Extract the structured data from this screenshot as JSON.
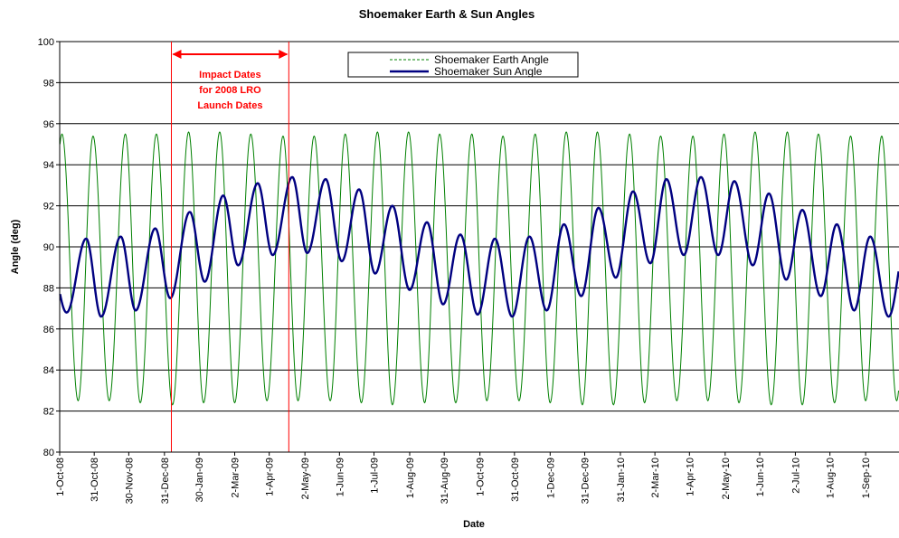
{
  "chart_data": {
    "type": "line",
    "title": "Shoemaker Earth & Sun Angles",
    "xlabel": "Date",
    "ylabel": "Angle (deg)",
    "ylim": [
      80,
      100
    ],
    "yticks": [
      80,
      82,
      84,
      86,
      88,
      90,
      92,
      94,
      96,
      98,
      100
    ],
    "xlim": [
      "2008-10-01",
      "2010-09-30"
    ],
    "x_tick_labels": [
      "1-Oct-08",
      "31-Oct-08",
      "30-Nov-08",
      "31-Dec-08",
      "30-Jan-09",
      "2-Mar-09",
      "1-Apr-09",
      "2-May-09",
      "1-Jun-09",
      "1-Jul-09",
      "1-Aug-09",
      "31-Aug-09",
      "1-Oct-09",
      "31-Oct-09",
      "1-Dec-09",
      "31-Dec-09",
      "31-Jan-10",
      "2-Mar-10",
      "1-Apr-10",
      "2-May-10",
      "1-Jun-10",
      "2-Jul-10",
      "1-Aug-10",
      "1-Sep-10"
    ],
    "x_tick_dates": [
      "2008-10-01",
      "2008-10-31",
      "2008-11-30",
      "2008-12-31",
      "2009-01-30",
      "2009-03-02",
      "2009-04-01",
      "2009-05-02",
      "2009-06-01",
      "2009-07-01",
      "2009-08-01",
      "2009-08-31",
      "2009-10-01",
      "2009-10-31",
      "2009-12-01",
      "2009-12-31",
      "2010-01-31",
      "2010-03-02",
      "2010-04-01",
      "2010-05-02",
      "2010-06-01",
      "2010-07-02",
      "2010-08-01",
      "2010-09-01"
    ],
    "grid": "horizontal",
    "legend_position": "top-center",
    "series": [
      {
        "name": "Shoemaker Earth Angle",
        "color": "#008000",
        "style": "dashed",
        "description": "oscillates between about 82.3 and 95.5 deg with a ~27.3-day period",
        "peaks": {
          "x": [
            "2008-10-03",
            "2008-10-30",
            "2008-11-27",
            "2008-12-24",
            "2009-01-21",
            "2009-02-17",
            "2009-03-16",
            "2009-04-13",
            "2009-05-10",
            "2009-06-06",
            "2009-07-04",
            "2009-07-31",
            "2009-08-27",
            "2009-09-24",
            "2009-10-21",
            "2009-11-18",
            "2009-12-15",
            "2010-01-11",
            "2010-02-08",
            "2010-03-07",
            "2010-04-04",
            "2010-05-01",
            "2010-05-28",
            "2010-06-25",
            "2010-07-22",
            "2010-08-19",
            "2010-09-15"
          ],
          "y": [
            95.5,
            95.4,
            95.5,
            95.5,
            95.6,
            95.6,
            95.5,
            95.4,
            95.4,
            95.5,
            95.6,
            95.6,
            95.5,
            95.5,
            95.4,
            95.5,
            95.6,
            95.6,
            95.5,
            95.4,
            95.4,
            95.5,
            95.6,
            95.6,
            95.5,
            95.4,
            95.4
          ]
        },
        "troughs": {
          "x": [
            "2008-10-17",
            "2008-11-13",
            "2008-12-10",
            "2009-01-07",
            "2009-02-03",
            "2009-03-02",
            "2009-03-30",
            "2009-04-26",
            "2009-05-24",
            "2009-06-20",
            "2009-07-17",
            "2009-08-14",
            "2009-09-10",
            "2009-10-07",
            "2009-11-04",
            "2009-12-01",
            "2009-12-29",
            "2010-01-25",
            "2010-02-21",
            "2010-03-21",
            "2010-04-17",
            "2010-05-14",
            "2010-06-11",
            "2010-07-08",
            "2010-08-05",
            "2010-09-01",
            "2010-09-28"
          ],
          "y": [
            82.5,
            82.5,
            82.4,
            82.3,
            82.4,
            82.4,
            82.5,
            82.5,
            82.5,
            82.4,
            82.3,
            82.4,
            82.4,
            82.5,
            82.5,
            82.4,
            82.3,
            82.3,
            82.4,
            82.5,
            82.5,
            82.4,
            82.3,
            82.3,
            82.4,
            82.5,
            82.5
          ]
        }
      },
      {
        "name": "Shoemaker Sun Angle",
        "color": "#000080",
        "style": "solid",
        "description": "oscillates with ~29.5-day period; amplitude grows and shrinks over time",
        "peaks": {
          "x": [
            "2008-10-24",
            "2008-11-23",
            "2008-12-23",
            "2009-01-22",
            "2009-02-20",
            "2009-03-22",
            "2009-04-21",
            "2009-05-20",
            "2009-06-18",
            "2009-07-17",
            "2009-08-16",
            "2009-09-14",
            "2009-10-14",
            "2009-11-13",
            "2009-12-13",
            "2010-01-12",
            "2010-02-11",
            "2010-03-12",
            "2010-04-11",
            "2010-05-10",
            "2010-06-09",
            "2010-07-08",
            "2010-08-07",
            "2010-09-05"
          ],
          "y": [
            90.4,
            90.5,
            90.9,
            91.7,
            92.5,
            93.1,
            93.4,
            93.3,
            92.8,
            92.0,
            91.2,
            90.6,
            90.4,
            90.5,
            91.1,
            91.9,
            92.7,
            93.3,
            93.4,
            93.2,
            92.6,
            91.8,
            91.1,
            90.5
          ]
        },
        "troughs": {
          "x": [
            "2008-10-07",
            "2008-11-06",
            "2008-12-06",
            "2009-01-05",
            "2009-02-04",
            "2009-03-05",
            "2009-04-04",
            "2009-05-04",
            "2009-06-03",
            "2009-07-02",
            "2009-08-01",
            "2009-08-30",
            "2009-09-29",
            "2009-10-29",
            "2009-11-28",
            "2009-12-28",
            "2010-01-27",
            "2010-02-26",
            "2010-03-27",
            "2010-04-26",
            "2010-05-26",
            "2010-06-24",
            "2010-07-24",
            "2010-08-22",
            "2010-09-21"
          ],
          "y": [
            86.8,
            86.6,
            86.9,
            87.5,
            88.3,
            89.1,
            89.6,
            89.7,
            89.3,
            88.7,
            87.9,
            87.2,
            86.7,
            86.6,
            86.9,
            87.6,
            88.5,
            89.2,
            89.6,
            89.6,
            89.1,
            88.4,
            87.6,
            86.9,
            86.6
          ]
        }
      }
    ],
    "annotation": {
      "lines": [
        "Impact Dates",
        "for 2008 LRO",
        "Launch Dates"
      ],
      "color": "#ff0000",
      "start": "2009-01-06",
      "end": "2009-04-18"
    }
  }
}
